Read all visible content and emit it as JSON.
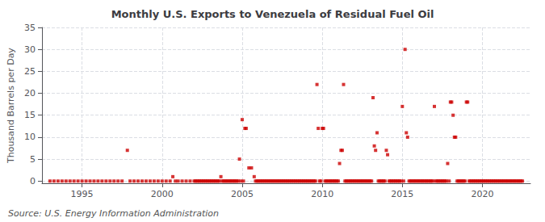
{
  "chart_data": {
    "type": "scatter",
    "title": "Monthly U.S. Exports to Venezuela of Residual Fuel Oil",
    "ylabel": "Thousand Barrels per Day",
    "annotation": "Source: U.S. Energy Information Administration",
    "color": "#cc0000",
    "marker": "square",
    "grid": true,
    "xlim": [
      1992.5,
      2023.0
    ],
    "xticks": [
      1995,
      2000,
      2005,
      2010,
      2015,
      2020
    ],
    "ylim": [
      -0.5,
      35
    ],
    "yticks": [
      0,
      5,
      10,
      15,
      20,
      25,
      30,
      35
    ],
    "x": [
      1993.0,
      1993.25,
      1993.5,
      1993.75,
      1994.0,
      1994.25,
      1994.5,
      1994.75,
      1995.0,
      1995.25,
      1995.5,
      1995.75,
      1996.0,
      1996.25,
      1996.5,
      1996.75,
      1997.0,
      1997.25,
      1997.5,
      1997.83,
      1998.0,
      1998.25,
      1998.5,
      1998.75,
      1999.0,
      1999.25,
      1999.5,
      1999.75,
      2000.0,
      2000.25,
      2000.5,
      2000.67,
      2000.83,
      2001.0,
      2001.25,
      2001.5,
      2001.75,
      2002.0,
      2002.08,
      2002.17,
      2002.25,
      2002.33,
      2002.42,
      2002.5,
      2002.58,
      2002.67,
      2002.75,
      2002.83,
      2002.92,
      2003.0,
      2003.08,
      2003.17,
      2003.25,
      2003.33,
      2003.42,
      2003.5,
      2003.58,
      2003.67,
      2003.75,
      2003.83,
      2003.92,
      2004.0,
      2004.08,
      2004.17,
      2004.25,
      2004.33,
      2004.42,
      2004.5,
      2004.58,
      2004.67,
      2004.75,
      2004.83,
      2004.92,
      2005.0,
      2005.08,
      2005.17,
      2005.25,
      2005.42,
      2005.58,
      2005.75,
      2005.83,
      2005.92,
      2006.0,
      2006.08,
      2006.17,
      2006.25,
      2006.33,
      2006.42,
      2006.5,
      2006.58,
      2006.67,
      2006.75,
      2006.83,
      2006.92,
      2007.0,
      2007.08,
      2007.17,
      2007.25,
      2007.33,
      2007.42,
      2007.5,
      2007.58,
      2007.67,
      2007.75,
      2007.83,
      2007.92,
      2008.0,
      2008.08,
      2008.17,
      2008.25,
      2008.33,
      2008.42,
      2008.5,
      2008.58,
      2008.67,
      2008.75,
      2008.83,
      2008.92,
      2009.0,
      2009.08,
      2009.17,
      2009.25,
      2009.33,
      2009.42,
      2009.5,
      2009.58,
      2009.67,
      2009.75,
      2009.83,
      2009.92,
      2010.0,
      2010.08,
      2010.17,
      2010.25,
      2010.33,
      2010.42,
      2010.5,
      2010.58,
      2010.67,
      2010.75,
      2010.83,
      2010.92,
      2011.0,
      2011.08,
      2011.17,
      2011.25,
      2011.33,
      2011.42,
      2011.5,
      2011.58,
      2011.67,
      2011.75,
      2011.83,
      2011.92,
      2012.0,
      2012.08,
      2012.17,
      2012.25,
      2012.33,
      2012.42,
      2012.5,
      2012.58,
      2012.67,
      2012.75,
      2012.83,
      2012.92,
      2013.0,
      2013.08,
      2013.17,
      2013.25,
      2013.33,
      2013.42,
      2013.5,
      2013.58,
      2013.67,
      2013.75,
      2013.83,
      2013.92,
      2014.0,
      2014.08,
      2014.17,
      2014.25,
      2014.33,
      2014.42,
      2014.5,
      2014.58,
      2014.67,
      2014.75,
      2014.83,
      2014.92,
      2015.0,
      2015.08,
      2015.17,
      2015.25,
      2015.33,
      2015.42,
      2015.5,
      2015.58,
      2015.67,
      2015.75,
      2015.83,
      2015.92,
      2016.0,
      2016.08,
      2016.17,
      2016.25,
      2016.33,
      2016.42,
      2016.5,
      2016.58,
      2016.67,
      2016.75,
      2016.83,
      2016.92,
      2017.0,
      2017.08,
      2017.17,
      2017.25,
      2017.33,
      2017.42,
      2017.5,
      2017.58,
      2017.67,
      2017.75,
      2017.83,
      2017.92,
      2018.0,
      2018.08,
      2018.17,
      2018.25,
      2018.33,
      2018.42,
      2018.5,
      2018.58,
      2018.67,
      2018.75,
      2018.83,
      2018.92,
      2019.0,
      2019.08,
      2019.17,
      2019.25,
      2019.33,
      2019.42,
      2019.5,
      2019.58,
      2019.67,
      2019.75,
      2019.83,
      2019.92,
      2020.0,
      2020.08,
      2020.17,
      2020.25,
      2020.33,
      2020.42,
      2020.5,
      2020.58,
      2020.67,
      2020.75,
      2020.83,
      2020.92,
      2021.0,
      2021.08,
      2021.17,
      2021.25,
      2021.33,
      2021.42,
      2021.5,
      2021.58,
      2021.67,
      2021.75,
      2021.83,
      2021.92,
      2022.0,
      2022.08,
      2022.17,
      2022.25,
      2022.33,
      2022.42,
      2022.5
    ],
    "values": [
      0,
      0,
      0,
      0,
      0,
      0,
      0,
      0,
      0,
      0,
      0,
      0,
      0,
      0,
      0,
      0,
      0,
      0,
      0,
      7,
      0,
      0,
      0,
      0,
      0,
      0,
      0,
      0,
      0,
      0,
      0,
      1,
      0,
      0,
      0,
      0,
      0,
      0,
      0,
      0,
      0,
      0,
      0,
      0,
      0,
      0,
      0,
      0,
      0,
      0,
      0,
      0,
      0,
      0,
      0,
      0,
      0,
      1,
      0,
      0,
      0,
      0,
      0,
      0,
      0,
      0,
      0,
      0,
      0,
      0,
      0,
      5,
      0,
      14,
      0,
      12,
      12,
      3,
      3,
      1,
      0,
      0,
      0,
      0,
      0,
      0,
      0,
      0,
      0,
      0,
      0,
      0,
      0,
      0,
      0,
      0,
      0,
      0,
      0,
      0,
      0,
      0,
      0,
      0,
      0,
      0,
      0,
      0,
      0,
      0,
      0,
      0,
      0,
      0,
      0,
      0,
      0,
      0,
      0,
      0,
      0,
      0,
      0,
      0,
      0,
      0,
      22,
      12,
      0,
      0,
      12,
      12,
      0,
      0,
      0,
      0,
      0,
      0,
      0,
      0,
      0,
      0,
      0,
      4,
      7,
      7,
      22,
      0,
      0,
      0,
      0,
      0,
      0,
      0,
      0,
      0,
      0,
      0,
      0,
      0,
      0,
      0,
      0,
      0,
      0,
      0,
      0,
      0,
      19,
      8,
      7,
      11,
      0,
      0,
      0,
      0,
      0,
      0,
      7,
      6,
      0,
      0,
      0,
      0,
      0,
      0,
      0,
      0,
      0,
      0,
      17,
      0,
      30,
      11,
      10,
      0,
      0,
      0,
      0,
      0,
      0,
      0,
      0,
      0,
      0,
      0,
      0,
      0,
      0,
      0,
      0,
      0,
      0,
      0,
      17,
      0,
      0,
      0,
      0,
      0,
      0,
      0,
      0,
      0,
      4,
      0,
      18,
      18,
      15,
      10,
      10,
      0,
      0,
      0,
      0,
      0,
      0,
      0,
      18,
      18,
      0,
      0,
      0,
      0,
      0,
      0,
      0,
      0,
      0,
      0,
      0,
      0,
      0,
      0,
      0,
      0,
      0,
      0,
      0,
      0,
      0,
      0,
      0,
      0,
      0,
      0,
      0,
      0,
      0,
      0,
      0,
      0,
      0,
      0,
      0,
      0,
      0,
      0,
      0,
      0,
      0
    ]
  }
}
